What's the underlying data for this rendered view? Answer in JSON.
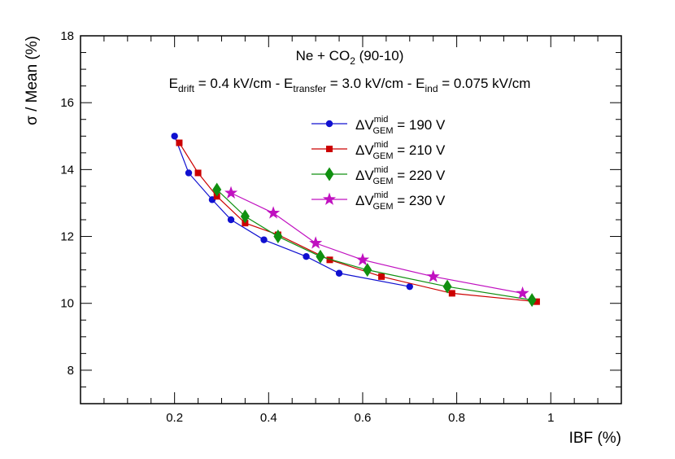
{
  "chart_data": {
    "type": "line",
    "title": "Ne + CO",
    "title_sub": "2",
    "title_suffix": " (90-10)",
    "field_annotation": {
      "E1": "E",
      "E1_sub": "drift",
      "E1_text": " = 0.4 kV/cm - ",
      "E2": "E",
      "E2_sub": "transfer",
      "E2_text": " = 3.0 kV/cm - ",
      "E3": "E",
      "E3_sub": "ind",
      "E3_text": " = 0.075 kV/cm"
    },
    "xlabel": "IBF (%)",
    "ylabel": "σ / Mean (%)",
    "xlim": [
      0.0,
      1.15
    ],
    "ylim": [
      7.0,
      18.0
    ],
    "x_ticks": [
      "0.2",
      "0.4",
      "0.6",
      "0.8",
      "1"
    ],
    "y_ticks": [
      "8",
      "10",
      "12",
      "14",
      "16",
      "18"
    ],
    "legend_placement": "upper-center",
    "series": [
      {
        "name_prefix": "ΔV",
        "name_sup": "mid",
        "name_sub": "GEM",
        "name_suffix": " = 190 V",
        "color": "#1010d0",
        "marker": "circle",
        "x": [
          0.2,
          0.23,
          0.28,
          0.32,
          0.39,
          0.48,
          0.55,
          0.7
        ],
        "y": [
          15.0,
          13.9,
          13.1,
          12.5,
          11.9,
          11.4,
          10.9,
          10.5
        ]
      },
      {
        "name_prefix": "ΔV",
        "name_sup": "mid",
        "name_sub": "GEM",
        "name_suffix": " = 210 V",
        "color": "#cc0000",
        "marker": "square",
        "x": [
          0.21,
          0.25,
          0.29,
          0.35,
          0.42,
          0.53,
          0.64,
          0.79,
          0.97
        ],
        "y": [
          14.8,
          13.9,
          13.2,
          12.4,
          12.05,
          11.3,
          10.8,
          10.3,
          10.05
        ]
      },
      {
        "name_prefix": "ΔV",
        "name_sup": "mid",
        "name_sub": "GEM",
        "name_suffix": " = 220 V",
        "color": "#109010",
        "marker": "diamond",
        "x": [
          0.29,
          0.35,
          0.42,
          0.51,
          0.61,
          0.78,
          0.96
        ],
        "y": [
          13.4,
          12.6,
          12.0,
          11.4,
          11.0,
          10.5,
          10.1
        ]
      },
      {
        "name_prefix": "ΔV",
        "name_sup": "mid",
        "name_sub": "GEM",
        "name_suffix": " = 230 V",
        "color": "#c010c0",
        "marker": "star",
        "x": [
          0.32,
          0.41,
          0.5,
          0.6,
          0.75,
          0.94
        ],
        "y": [
          13.3,
          12.7,
          11.8,
          11.3,
          10.8,
          10.3
        ]
      }
    ]
  }
}
